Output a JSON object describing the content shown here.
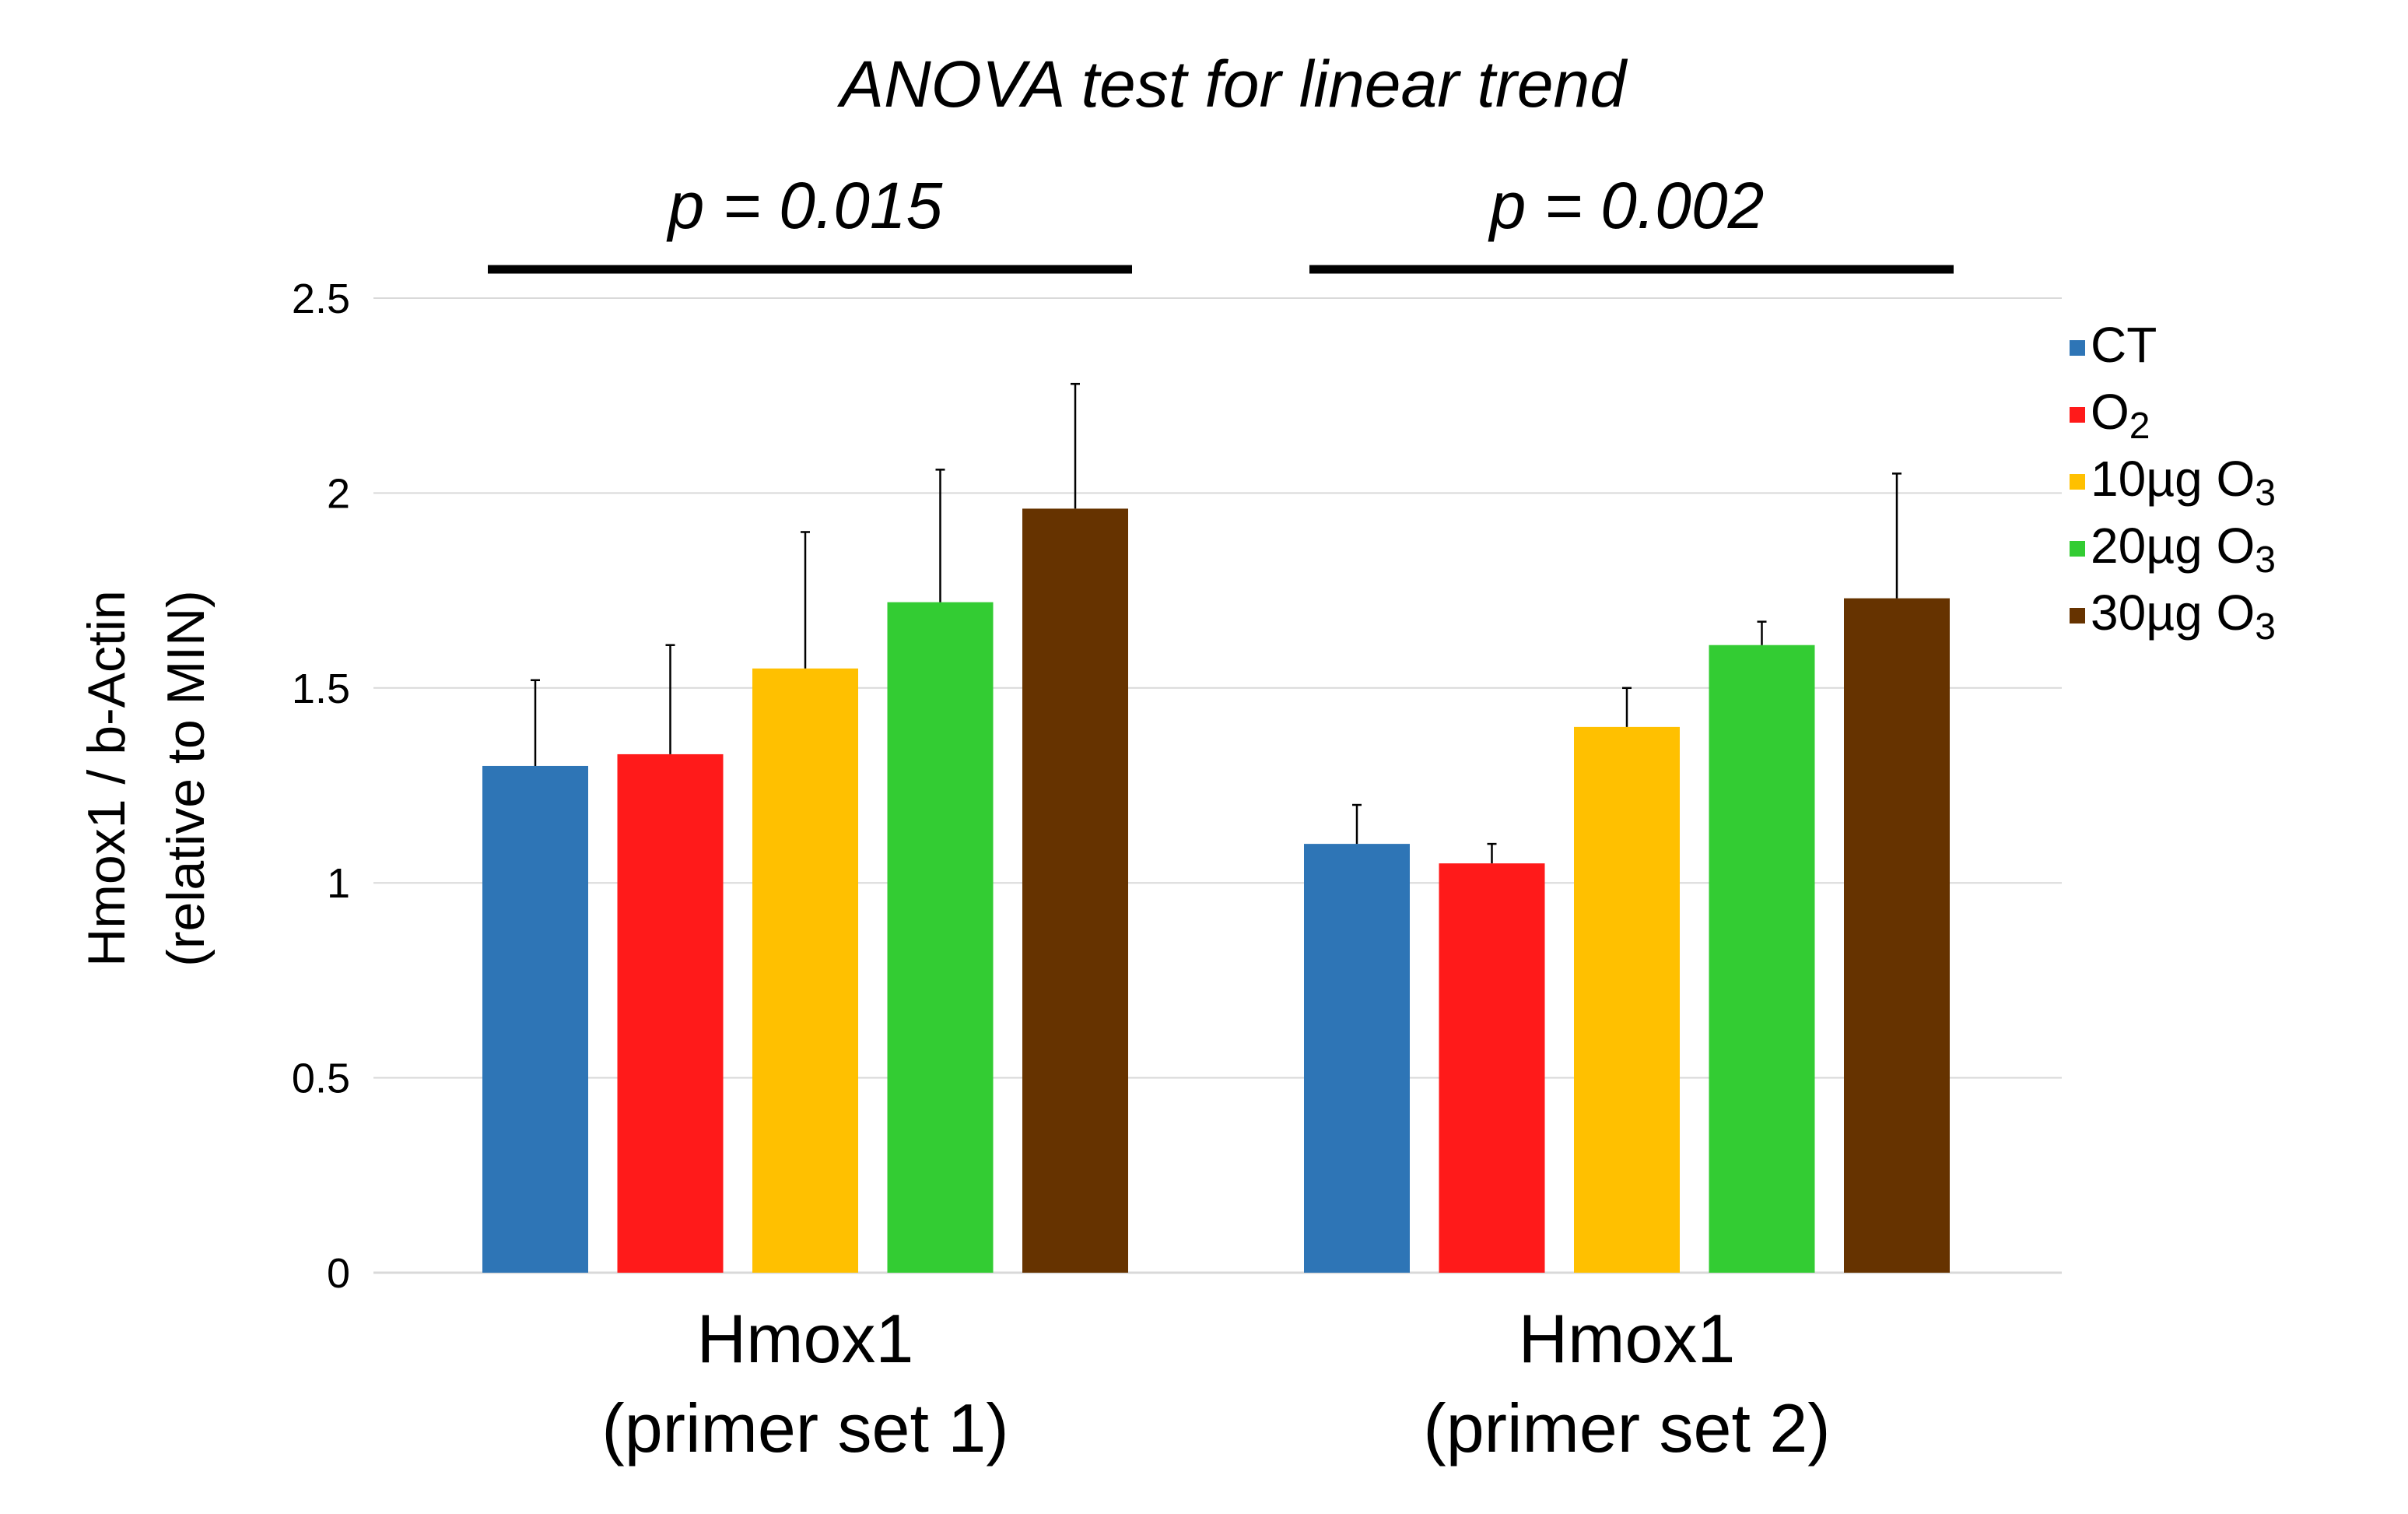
{
  "chart_data": {
    "type": "bar",
    "title": "ANOVA test for linear trend",
    "ylabel_line1": "Hmox1 / b-Actin",
    "ylabel_line2": "(relative to MIN)",
    "ylim": [
      0,
      2.5
    ],
    "yticks": [
      0,
      0.5,
      1,
      1.5,
      2,
      2.5
    ],
    "ytick_labels": [
      "0",
      "0.5",
      "1",
      "1.5",
      "2",
      "2.5"
    ],
    "grid": true,
    "legend_position": "right",
    "categories": [
      {
        "line1": "Hmox1",
        "line2": "(primer set 1)",
        "p_value": "p = 0.015"
      },
      {
        "line1": "Hmox1",
        "line2": "(primer set 2)",
        "p_value": "p = 0.002"
      }
    ],
    "series": [
      {
        "name": "CT",
        "name_main": "CT",
        "name_sub": "",
        "color": "#2e75b6",
        "values": [
          1.3,
          1.1
        ],
        "errors": [
          0.22,
          0.1
        ]
      },
      {
        "name": "O2",
        "name_main": "O",
        "name_sub": "2",
        "color": "#ff1a1a",
        "values": [
          1.33,
          1.05
        ],
        "errors": [
          0.28,
          0.05
        ]
      },
      {
        "name": "10µg O3",
        "name_main": "10µg O",
        "name_sub": "3",
        "color": "#ffc000",
        "values": [
          1.55,
          1.4
        ],
        "errors": [
          0.35,
          0.1
        ]
      },
      {
        "name": "20µg O3",
        "name_main": "20µg O",
        "name_sub": "3",
        "color": "#33cc33",
        "values": [
          1.72,
          1.61
        ],
        "errors": [
          0.34,
          0.06
        ]
      },
      {
        "name": "30µg O3",
        "name_main": "30µg O",
        "name_sub": "3",
        "color": "#663300",
        "values": [
          1.96,
          1.73
        ],
        "errors": [
          0.32,
          0.32
        ]
      }
    ]
  }
}
